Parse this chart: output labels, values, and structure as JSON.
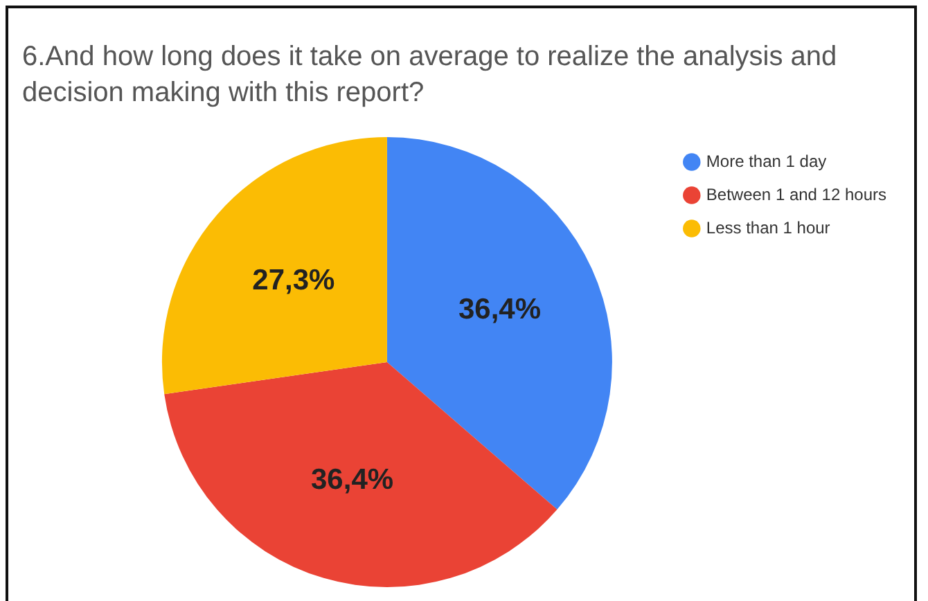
{
  "chart_data": {
    "type": "pie",
    "title": "6.And how long does it take on average to realize the analysis and decision making with this report?",
    "categories": [
      "More than 1 day",
      "Between 1 and 12 hours",
      "Less than 1 hour"
    ],
    "values": [
      36.4,
      36.4,
      27.3
    ],
    "colors": [
      "#4285f4",
      "#ea4335",
      "#fbbc04"
    ],
    "value_labels": [
      "36,4%",
      "36,4%",
      "27,3%"
    ],
    "legend": "right"
  }
}
